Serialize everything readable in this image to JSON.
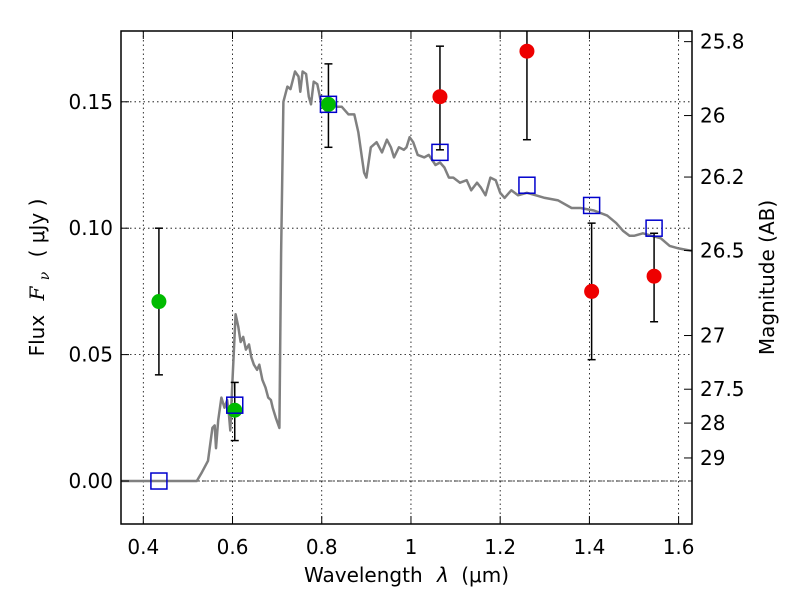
{
  "chart_data": {
    "type": "scatter",
    "xlabel_prefix": "Wavelength",
    "xlabel_symbol": "λ",
    "xlabel_unit": "(μm)",
    "ylabel_prefix": "Flux",
    "ylabel_symbol": "F",
    "ylabel_subscript": "ν",
    "ylabel_unit": "( μJy )",
    "y2label": "Magnitude (AB)",
    "xlim": [
      0.35,
      1.63
    ],
    "ylim": [
      -0.017,
      0.178
    ],
    "grid": true,
    "x_ticks": [
      0.4,
      0.6,
      0.8,
      1.0,
      1.2,
      1.4,
      1.6
    ],
    "x_tick_labels": [
      "0.4",
      "0.6",
      "0.8",
      "1",
      "1.2",
      "1.4",
      "1.6"
    ],
    "y_ticks": [
      0.0,
      0.05,
      0.1,
      0.15
    ],
    "y_tick_labels": [
      "0.00",
      "0.05",
      "0.10",
      "0.15"
    ],
    "y2_ticks": [
      25.8,
      26,
      26.2,
      26.5,
      27,
      27.5,
      28,
      29
    ],
    "y2_tick_labels": [
      "25.8",
      "26",
      "26.2",
      "26.5",
      "27",
      "27.5",
      "28",
      "29"
    ],
    "colors": {
      "model": "#808080",
      "green": "#00bb00",
      "red": "#ee0000",
      "blue": "#0000cc",
      "errorbar": "#000000",
      "zero_line": "#000000"
    },
    "model_spectrum": [
      [
        0.35,
        0.0
      ],
      [
        0.52,
        0.0
      ],
      [
        0.53,
        0.003
      ],
      [
        0.545,
        0.008
      ],
      [
        0.555,
        0.021
      ],
      [
        0.56,
        0.022
      ],
      [
        0.563,
        0.013
      ],
      [
        0.568,
        0.024
      ],
      [
        0.575,
        0.033
      ],
      [
        0.582,
        0.029
      ],
      [
        0.588,
        0.032
      ],
      [
        0.592,
        0.026
      ],
      [
        0.595,
        0.02
      ],
      [
        0.6,
        0.04
      ],
      [
        0.607,
        0.066
      ],
      [
        0.613,
        0.061
      ],
      [
        0.618,
        0.055
      ],
      [
        0.624,
        0.057
      ],
      [
        0.63,
        0.052
      ],
      [
        0.637,
        0.054
      ],
      [
        0.642,
        0.049
      ],
      [
        0.648,
        0.046
      ],
      [
        0.655,
        0.044
      ],
      [
        0.66,
        0.046
      ],
      [
        0.667,
        0.04
      ],
      [
        0.674,
        0.037
      ],
      [
        0.68,
        0.033
      ],
      [
        0.686,
        0.032
      ],
      [
        0.69,
        0.029
      ],
      [
        0.697,
        0.025
      ],
      [
        0.705,
        0.021
      ],
      [
        0.709,
        0.09
      ],
      [
        0.714,
        0.15
      ],
      [
        0.723,
        0.156
      ],
      [
        0.73,
        0.155
      ],
      [
        0.74,
        0.162
      ],
      [
        0.748,
        0.16
      ],
      [
        0.752,
        0.154
      ],
      [
        0.757,
        0.162
      ],
      [
        0.765,
        0.161
      ],
      [
        0.771,
        0.152
      ],
      [
        0.776,
        0.149
      ],
      [
        0.782,
        0.158
      ],
      [
        0.79,
        0.157
      ],
      [
        0.798,
        0.15
      ],
      [
        0.81,
        0.146
      ],
      [
        0.82,
        0.15
      ],
      [
        0.833,
        0.148
      ],
      [
        0.845,
        0.148
      ],
      [
        0.86,
        0.145
      ],
      [
        0.873,
        0.145
      ],
      [
        0.882,
        0.138
      ],
      [
        0.89,
        0.128
      ],
      [
        0.895,
        0.122
      ],
      [
        0.9,
        0.12
      ],
      [
        0.91,
        0.132
      ],
      [
        0.923,
        0.134
      ],
      [
        0.935,
        0.13
      ],
      [
        0.946,
        0.135
      ],
      [
        0.955,
        0.132
      ],
      [
        0.962,
        0.128
      ],
      [
        0.973,
        0.132
      ],
      [
        0.984,
        0.131
      ],
      [
        0.99,
        0.132
      ],
      [
        0.997,
        0.136
      ],
      [
        1.005,
        0.134
      ],
      [
        1.015,
        0.129
      ],
      [
        1.03,
        0.128
      ],
      [
        1.04,
        0.129
      ],
      [
        1.055,
        0.125
      ],
      [
        1.065,
        0.126
      ],
      [
        1.075,
        0.124
      ],
      [
        1.085,
        0.12
      ],
      [
        1.095,
        0.12
      ],
      [
        1.11,
        0.118
      ],
      [
        1.125,
        0.119
      ],
      [
        1.135,
        0.115
      ],
      [
        1.148,
        0.118
      ],
      [
        1.157,
        0.116
      ],
      [
        1.167,
        0.113
      ],
      [
        1.178,
        0.12
      ],
      [
        1.19,
        0.119
      ],
      [
        1.2,
        0.114
      ],
      [
        1.21,
        0.112
      ],
      [
        1.225,
        0.115
      ],
      [
        1.24,
        0.113
      ],
      [
        1.26,
        0.114
      ],
      [
        1.28,
        0.113
      ],
      [
        1.3,
        0.112
      ],
      [
        1.33,
        0.111
      ],
      [
        1.36,
        0.108
      ],
      [
        1.38,
        0.108
      ],
      [
        1.41,
        0.107
      ],
      [
        1.44,
        0.105
      ],
      [
        1.46,
        0.102
      ],
      [
        1.475,
        0.099
      ],
      [
        1.49,
        0.097
      ],
      [
        1.5,
        0.097
      ],
      [
        1.52,
        0.098
      ],
      [
        1.54,
        0.097
      ],
      [
        1.56,
        0.096
      ],
      [
        1.58,
        0.093
      ],
      [
        1.6,
        0.092
      ],
      [
        1.63,
        0.091
      ]
    ],
    "series": [
      {
        "color_key": "green",
        "marker": "circle",
        "points": [
          {
            "x": 0.435,
            "y": 0.071,
            "yerr_low": 0.042,
            "yerr_high": 0.1
          },
          {
            "x": 0.605,
            "y": 0.028,
            "yerr_low": 0.016,
            "yerr_high": 0.039
          },
          {
            "x": 0.815,
            "y": 0.149,
            "yerr_low": 0.132,
            "yerr_high": 0.165
          }
        ]
      },
      {
        "color_key": "red",
        "marker": "circle",
        "points": [
          {
            "x": 1.065,
            "y": 0.152,
            "yerr_low": 0.131,
            "yerr_high": 0.172
          },
          {
            "x": 1.26,
            "y": 0.17,
            "yerr_low": 0.135,
            "yerr_high": 0.181
          },
          {
            "x": 1.405,
            "y": 0.075,
            "yerr_low": 0.048,
            "yerr_high": 0.102
          },
          {
            "x": 1.545,
            "y": 0.081,
            "yerr_low": 0.063,
            "yerr_high": 0.098
          }
        ]
      },
      {
        "color_key": "blue",
        "marker": "open-square",
        "points": [
          {
            "x": 0.435,
            "y": 0.0
          },
          {
            "x": 0.605,
            "y": 0.03
          },
          {
            "x": 0.815,
            "y": 0.149
          },
          {
            "x": 1.065,
            "y": 0.13
          },
          {
            "x": 1.26,
            "y": 0.117
          },
          {
            "x": 1.405,
            "y": 0.109
          },
          {
            "x": 1.545,
            "y": 0.1
          }
        ]
      }
    ]
  }
}
